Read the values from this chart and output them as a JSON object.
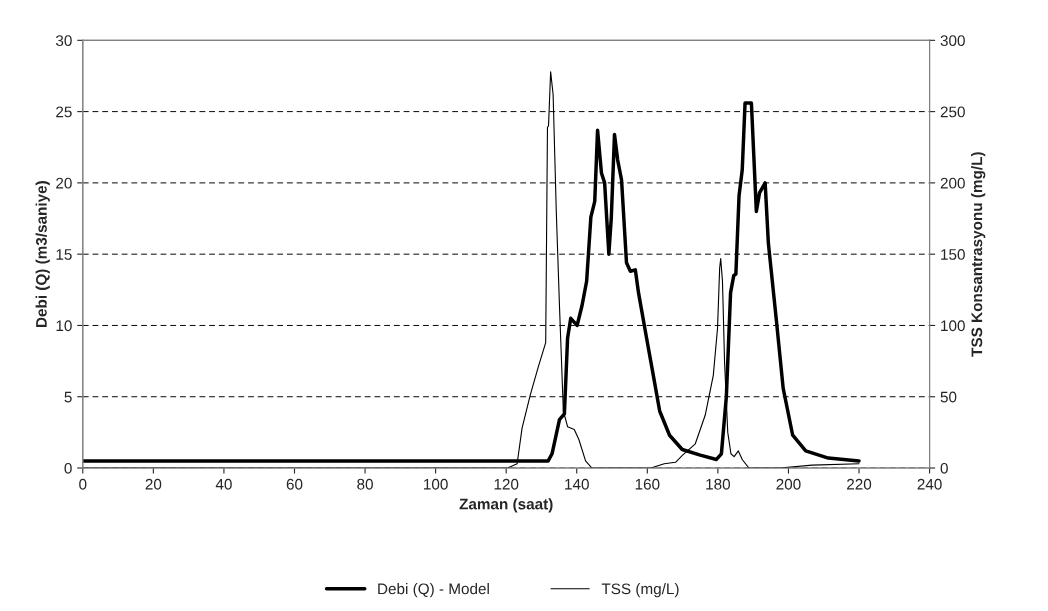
{
  "chart_data": {
    "type": "line",
    "xlabel": "Zaman (saat)",
    "ylabel": "Debi (Q) (m3/saniye)",
    "y2label": "TSS Konsantrasyonu (mg/L)",
    "xlim": [
      0,
      240
    ],
    "xticks": [
      0,
      20,
      40,
      60,
      80,
      100,
      120,
      140,
      160,
      180,
      200,
      220,
      240
    ],
    "ylim": [
      0,
      30
    ],
    "yticks": [
      0,
      5,
      10,
      15,
      20,
      25,
      30
    ],
    "y2lim": [
      0,
      300
    ],
    "y2ticks": [
      0,
      50,
      100,
      150,
      200,
      250,
      300
    ],
    "grid": "y",
    "legend": "bottom",
    "line_style": "solid",
    "marker": "none",
    "series": [
      {
        "name": "Debi (Q) - Model",
        "color": "#000000",
        "x": [
          0,
          131.9,
          133,
          135.1,
          136.5,
          137.4,
          138.3,
          140.1,
          141.5,
          142.8,
          144.0,
          145.1,
          145.9,
          147.0,
          147.9,
          149.1,
          149.8,
          150.7,
          151.6,
          152.7,
          154.1,
          155.2,
          156.6,
          157.5,
          159.8,
          161.7,
          163.5,
          166.3,
          169.9,
          175,
          179.6,
          181.0,
          182.4,
          183.6,
          184.5,
          185.1,
          186.0,
          186.9,
          187.7,
          189.5,
          190.9,
          191.8,
          193.4,
          194.3,
          196.6,
          198.5,
          201.2,
          204.9,
          211.3,
          220
        ],
        "values": [
          0.5,
          0.5,
          1,
          3.4,
          3.8,
          9.1,
          10.5,
          10.0,
          11.4,
          13.1,
          17.6,
          18.7,
          23.7,
          20.7,
          20.0,
          15.0,
          17.6,
          23.4,
          21.6,
          20.2,
          14.4,
          13.8,
          13.9,
          12.3,
          9.1,
          6.5,
          4.0,
          2.3,
          1.3,
          0.9,
          0.6,
          1.0,
          5,
          12.3,
          13.5,
          13.6,
          19.1,
          20.9,
          25.6,
          25.6,
          18.0,
          19.3,
          20.0,
          15.8,
          10.3,
          5.6,
          2.3,
          1.2,
          0.7,
          0.5
        ]
      },
      {
        "name": "TSS (mg/L)",
        "color": "#000000",
        "axis": "y2",
        "x": [
          0,
          120.4,
          123.1,
          124.5,
          126.8,
          129.1,
          131.2,
          131.7,
          132,
          132.6,
          133.3,
          134.2,
          135.1,
          136.2,
          137.4,
          139.3,
          140.6,
          142.5,
          144.3,
          161,
          164.8,
          168,
          170,
          173.6,
          176.4,
          178.7,
          179.9,
          180.5,
          180.8,
          181.3,
          181.9,
          182.8,
          183.7,
          184.6,
          185.8,
          186.9,
          188.8,
          197.5,
          206.7,
          220
        ],
        "values": [
          0,
          0,
          3,
          28,
          51,
          71,
          88,
          239,
          240,
          278,
          262,
          180,
          114,
          40,
          29,
          27,
          20,
          5,
          0,
          0,
          3,
          4,
          9,
          17,
          37,
          65,
          98,
          140,
          147,
          131,
          74,
          25,
          10,
          8,
          12,
          6,
          0,
          0,
          2,
          3
        ]
      }
    ]
  }
}
